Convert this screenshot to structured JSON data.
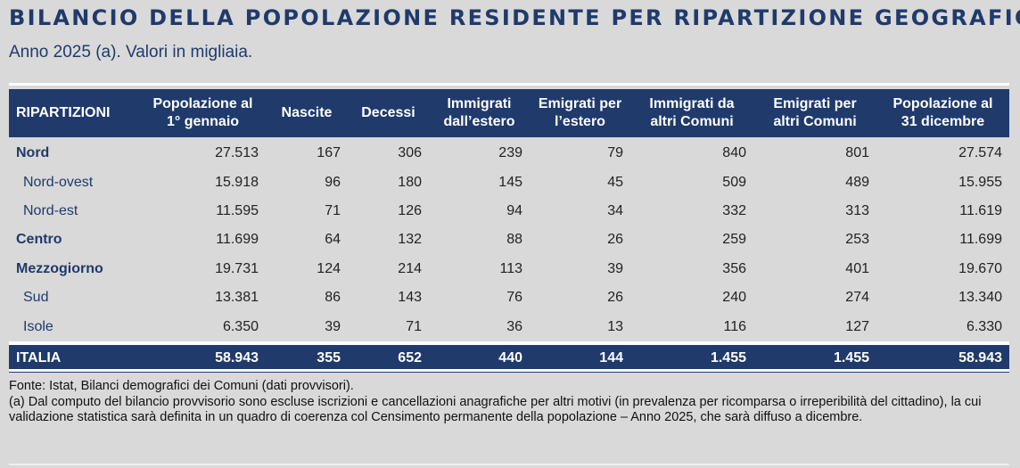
{
  "title": "BILANCIO DELLA POPOLAZIONE RESIDENTE PER RIPARTIZIONE GEOGRAFICA.",
  "subtitle": "Anno 2025 (a). Valori in migliaia.",
  "table": {
    "headers": [
      "RIPARTIZIONI",
      "Popolazione al 1° gennaio",
      "Nascite",
      "Decessi",
      "Immigrati dall’estero",
      "Emigrati per l’estero",
      "Immigrati da altri Comuni",
      "Emigrati per altri Comuni",
      "Popolazione al 31 dicembre"
    ],
    "rows": [
      {
        "level": 1,
        "cells": [
          "Nord",
          "27.513",
          "167",
          "306",
          "239",
          "79",
          "840",
          "801",
          "27.574"
        ]
      },
      {
        "level": 2,
        "cells": [
          "Nord-ovest",
          "15.918",
          "96",
          "180",
          "145",
          "45",
          "509",
          "489",
          "15.955"
        ]
      },
      {
        "level": 2,
        "cells": [
          "Nord-est",
          "11.595",
          "71",
          "126",
          "94",
          "34",
          "332",
          "313",
          "11.619"
        ]
      },
      {
        "level": 1,
        "cells": [
          "Centro",
          "11.699",
          "64",
          "132",
          "88",
          "26",
          "259",
          "253",
          "11.699"
        ]
      },
      {
        "level": 1,
        "cells": [
          "Mezzogiorno",
          "19.731",
          "124",
          "214",
          "113",
          "39",
          "356",
          "401",
          "19.670"
        ]
      },
      {
        "level": 2,
        "cells": [
          "Sud",
          "13.381",
          "86",
          "143",
          "76",
          "26",
          "240",
          "274",
          "13.340"
        ]
      },
      {
        "level": 2,
        "cells": [
          "Isole",
          "6.350",
          "39",
          "71",
          "36",
          "13",
          "116",
          "127",
          "6.330"
        ]
      }
    ],
    "total": [
      "ITALIA",
      "58.943",
      "355",
      "652",
      "440",
      "144",
      "1.455",
      "1.455",
      "58.943"
    ]
  },
  "notes": {
    "source": "Fonte: Istat, Bilanci demografici dei Comuni (dati provvisori).",
    "footnote": "(a) Dal computo del bilancio provvisorio sono escluse iscrizioni e cancellazioni anagrafiche per altri motivi (in prevalenza per ricomparsa o irreperibilità del cittadino), la cui validazione statistica sarà definita in un quadro di coerenza col Censimento permanente della popolazione – Anno 2025, che sarà diffuso a dicembre."
  },
  "colors": {
    "accent": "#1f3a6b",
    "background": "#d9d9d9"
  }
}
